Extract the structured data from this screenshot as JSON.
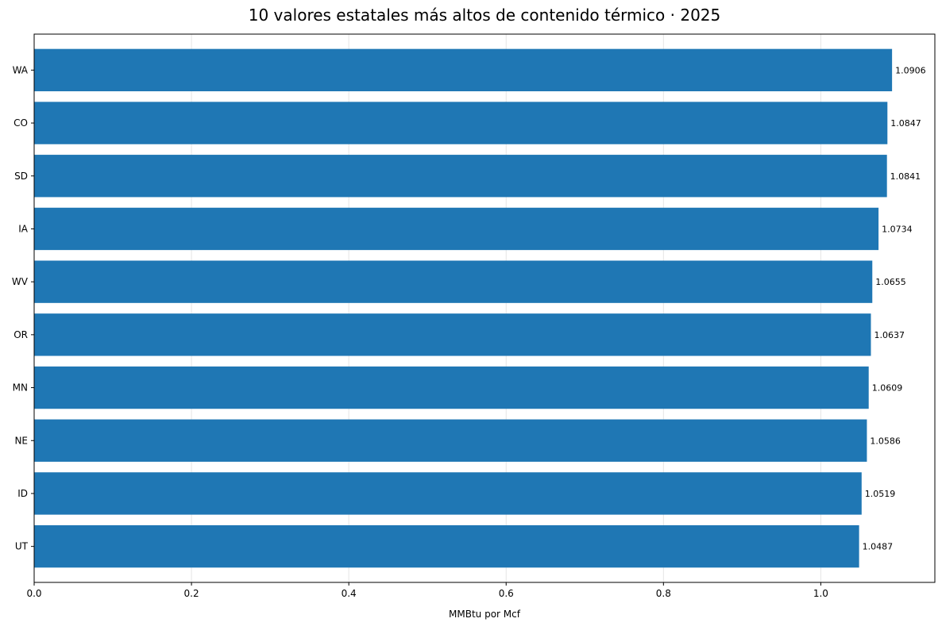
{
  "chart_data": {
    "type": "bar",
    "orientation": "horizontal",
    "title": "10 valores estatales más altos de contenido térmico · 2025",
    "xlabel": "MMBtu por Mcf",
    "ylabel": "",
    "categories": [
      "WA",
      "CO",
      "SD",
      "IA",
      "WV",
      "OR",
      "MN",
      "NE",
      "ID",
      "UT"
    ],
    "values": [
      1.0906,
      1.0847,
      1.0841,
      1.0734,
      1.0655,
      1.0637,
      1.0609,
      1.0586,
      1.0519,
      1.0487
    ],
    "value_labels": [
      "1.0906",
      "1.0847",
      "1.0841",
      "1.0734",
      "1.0655",
      "1.0637",
      "1.0609",
      "1.0586",
      "1.0519",
      "1.0487"
    ],
    "xlim": [
      0,
      1.145
    ],
    "xticks": [
      0.0,
      0.2,
      0.4,
      0.6,
      0.8,
      1.0
    ],
    "xtick_labels": [
      "0.0",
      "0.2",
      "0.4",
      "0.6",
      "0.8",
      "1.0"
    ],
    "grid": "x",
    "legend": "none",
    "bar_color": "#1f77b4",
    "grid_color": "#e6e6e6"
  }
}
